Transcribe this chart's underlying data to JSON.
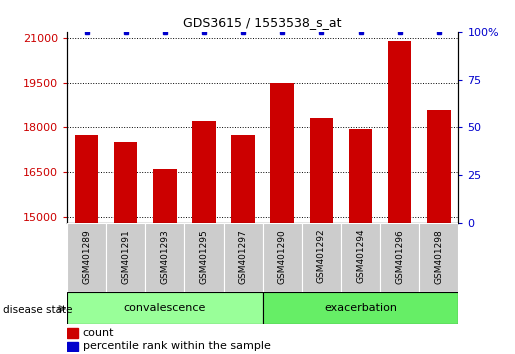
{
  "title": "GDS3615 / 1553538_s_at",
  "samples": [
    "GSM401289",
    "GSM401291",
    "GSM401293",
    "GSM401295",
    "GSM401297",
    "GSM401290",
    "GSM401292",
    "GSM401294",
    "GSM401296",
    "GSM401298"
  ],
  "counts": [
    17750,
    17500,
    16600,
    18200,
    17750,
    19500,
    18300,
    17950,
    20900,
    18600
  ],
  "percentiles": [
    100,
    100,
    100,
    100,
    100,
    100,
    100,
    100,
    100,
    100
  ],
  "bar_color": "#cc0000",
  "dot_color": "#0000cc",
  "ylim_left": [
    14800,
    21200
  ],
  "ylim_right": [
    0,
    100
  ],
  "yticks_left": [
    15000,
    16500,
    18000,
    19500,
    21000
  ],
  "yticks_right": [
    0,
    25,
    50,
    75,
    100
  ],
  "groups": [
    {
      "label": "convalescence",
      "indices": [
        0,
        1,
        2,
        3,
        4
      ],
      "color": "#99ff99"
    },
    {
      "label": "exacerbation",
      "indices": [
        5,
        6,
        7,
        8,
        9
      ],
      "color": "#66ee66"
    }
  ],
  "disease_state_label": "disease state",
  "legend_count_label": "count",
  "legend_percentile_label": "percentile rank within the sample",
  "sample_box_color": "#cccccc",
  "sample_box_edge": "#ffffff"
}
